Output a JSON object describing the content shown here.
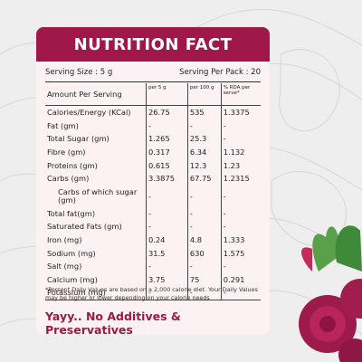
{
  "header": {
    "title": "NUTRITION FACT"
  },
  "serving": {
    "size": "Serving Size : 5 g",
    "per_pack": "Serving Per Pack : 20"
  },
  "table": {
    "columns": [
      "Amount Per Serving",
      "per 5 g",
      "per 100 g",
      "% RDA per serve*"
    ],
    "rows": [
      [
        "Calories/Energy (KCal)",
        "26.75",
        "535",
        "1.3375"
      ],
      [
        "Fat (gm)",
        "-",
        "-",
        "-"
      ],
      [
        "Total Sugar (gm)",
        "1.265",
        "25.3",
        "-"
      ],
      [
        "Fibre (gm)",
        "0.317",
        "6.34",
        "1.132"
      ],
      [
        "Proteins (gm)",
        "0.615",
        "12.3",
        "1.23"
      ],
      [
        "Carbs (gm)",
        "3.3875",
        "67.75",
        "1.2315"
      ],
      [
        "Carbs of which sugar (gm)",
        "-",
        "-",
        "-"
      ],
      [
        "Total fat(gm)",
        "-",
        "-",
        "-"
      ],
      [
        "Saturated Fats (gm)",
        "-",
        "-",
        "-"
      ],
      [
        "Iron (mg)",
        "0.24",
        "4.8",
        "1.333"
      ],
      [
        "Sodium (mg)",
        "31.5",
        "630",
        "1.575"
      ],
      [
        "Salt (mg)",
        "-",
        "-",
        "-"
      ],
      [
        "Calcium (mg)",
        "3.75",
        "75",
        "0.291"
      ],
      [
        "Potassium (mg)",
        "-",
        "-",
        "-"
      ]
    ]
  },
  "footnote": "*Persent Daily Values are based on a 2,000 calorie diet. Your Daily Values may be higher or lower depending on your calorie needs",
  "tagline": "Yayy.. No Additives & Preservatives"
}
